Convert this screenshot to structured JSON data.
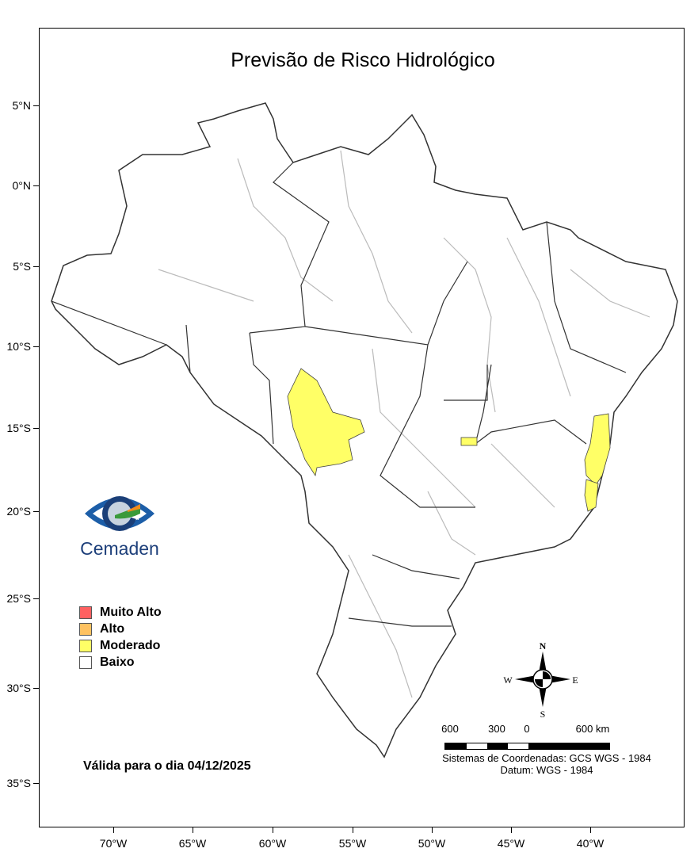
{
  "title": "Previsão de Risco Hidrológico",
  "lat_labels": [
    "5°N",
    "0°N",
    "5°S",
    "10°S",
    "15°S",
    "20°S",
    "25°S",
    "30°S",
    "35°S"
  ],
  "lon_labels": [
    "70°W",
    "65°W",
    "60°W",
    "55°W",
    "50°W",
    "45°W",
    "40°W"
  ],
  "logo": {
    "text": "Cemaden"
  },
  "legend": [
    {
      "label": "Muito Alto",
      "color": "#ff6161"
    },
    {
      "label": "Alto",
      "color": "#ffc261"
    },
    {
      "label": "Moderado",
      "color": "#ffff66"
    },
    {
      "label": "Baixo",
      "color": "#ffffff"
    }
  ],
  "valid_text": "Válida para o dia 04/12/2025",
  "compass": {
    "n": "N",
    "s": "S",
    "e": "E",
    "w": "W"
  },
  "scale": {
    "labels": [
      "600",
      "300",
      "0",
      "600 km"
    ]
  },
  "crs_line1": "Sistemas de Coordenadas: GCS WGS - 1984",
  "crs_line2": "Datum: WGS - 1984",
  "map": {
    "moderate_color": "#ffff66",
    "boundary_color": "#333333",
    "basin_color": "#bbbbbb"
  }
}
